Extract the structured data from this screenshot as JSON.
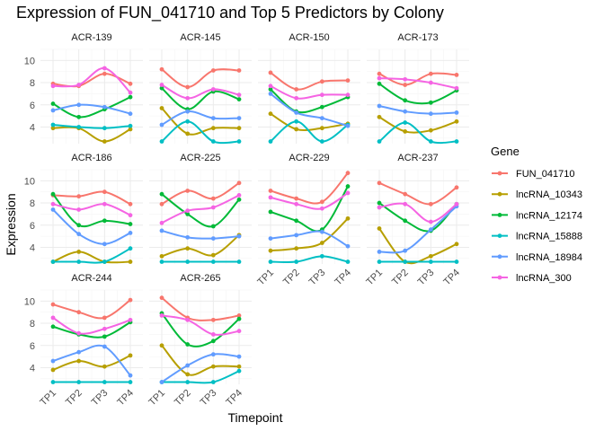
{
  "chart_data": {
    "type": "line",
    "title": "Expression of FUN_041710 and Top 5 Predictors by Colony",
    "xlabel": "Timepoint",
    "ylabel": "Expression",
    "x": [
      "TP1",
      "TP2",
      "TP3",
      "TP4"
    ],
    "ylim": [
      2.5,
      11
    ],
    "yticks": [
      4,
      6,
      8,
      10
    ],
    "grid": true,
    "facet_columns": 4,
    "legend": {
      "title": "Gene",
      "position": "right",
      "entries": [
        {
          "name": "FUN_041710",
          "color": "#F8766D"
        },
        {
          "name": "lncRNA_10343",
          "color": "#B79F00"
        },
        {
          "name": "lncRNA_12174",
          "color": "#00BA38"
        },
        {
          "name": "lncRNA_15888",
          "color": "#00BFC4"
        },
        {
          "name": "lncRNA_18984",
          "color": "#619CFF"
        },
        {
          "name": "lncRNA_300",
          "color": "#F564E3"
        }
      ]
    },
    "panels": [
      {
        "colony": "ACR-139",
        "series": [
          {
            "name": "FUN_041710",
            "values": [
              7.9,
              7.7,
              8.8,
              7.9
            ]
          },
          {
            "name": "lncRNA_10343",
            "values": [
              3.9,
              3.9,
              2.7,
              3.8
            ]
          },
          {
            "name": "lncRNA_12174",
            "values": [
              6.1,
              4.9,
              5.6,
              6.7
            ]
          },
          {
            "name": "lncRNA_15888",
            "values": [
              4.2,
              4.0,
              3.9,
              4.1
            ]
          },
          {
            "name": "lncRNA_18984",
            "values": [
              5.5,
              6.0,
              5.8,
              5.2
            ]
          },
          {
            "name": "lncRNA_300",
            "values": [
              7.7,
              7.8,
              9.3,
              7.1
            ]
          }
        ]
      },
      {
        "colony": "ACR-145",
        "series": [
          {
            "name": "FUN_041710",
            "values": [
              9.2,
              7.6,
              9.1,
              9.1
            ]
          },
          {
            "name": "lncRNA_10343",
            "values": [
              5.7,
              3.4,
              3.9,
              3.9
            ]
          },
          {
            "name": "lncRNA_12174",
            "values": [
              7.5,
              5.6,
              7.2,
              6.5
            ]
          },
          {
            "name": "lncRNA_15888",
            "values": [
              2.7,
              4.5,
              2.7,
              2.7
            ]
          },
          {
            "name": "lncRNA_18984",
            "values": [
              4.2,
              5.4,
              4.8,
              4.8
            ]
          },
          {
            "name": "lncRNA_300",
            "values": [
              7.8,
              6.6,
              7.4,
              6.9
            ]
          }
        ]
      },
      {
        "colony": "ACR-150",
        "series": [
          {
            "name": "FUN_041710",
            "values": [
              8.9,
              7.4,
              8.1,
              8.2
            ]
          },
          {
            "name": "lncRNA_10343",
            "values": [
              5.2,
              3.8,
              3.9,
              4.3
            ]
          },
          {
            "name": "lncRNA_12174",
            "values": [
              7.4,
              5.4,
              5.8,
              6.7
            ]
          },
          {
            "name": "lncRNA_15888",
            "values": [
              2.7,
              4.5,
              2.7,
              4.2
            ]
          },
          {
            "name": "lncRNA_18984",
            "values": [
              7.0,
              5.3,
              4.8,
              4.1
            ]
          },
          {
            "name": "lncRNA_300",
            "values": [
              7.7,
              6.6,
              6.9,
              6.9
            ]
          }
        ]
      },
      {
        "colony": "ACR-173",
        "series": [
          {
            "name": "FUN_041710",
            "values": [
              8.8,
              7.8,
              8.8,
              8.7
            ]
          },
          {
            "name": "lncRNA_10343",
            "values": [
              4.9,
              3.6,
              3.7,
              4.5
            ]
          },
          {
            "name": "lncRNA_12174",
            "values": [
              7.9,
              6.4,
              6.2,
              7.3
            ]
          },
          {
            "name": "lncRNA_15888",
            "values": [
              2.7,
              4.4,
              2.7,
              2.7
            ]
          },
          {
            "name": "lncRNA_18984",
            "values": [
              5.9,
              5.4,
              5.2,
              5.3
            ]
          },
          {
            "name": "lncRNA_300",
            "values": [
              8.4,
              8.3,
              8.0,
              7.5
            ]
          }
        ]
      },
      {
        "colony": "ACR-186",
        "series": [
          {
            "name": "FUN_041710",
            "values": [
              8.7,
              8.6,
              9.0,
              7.9
            ]
          },
          {
            "name": "lncRNA_10343",
            "values": [
              2.7,
              3.6,
              2.7,
              2.7
            ]
          },
          {
            "name": "lncRNA_12174",
            "values": [
              8.8,
              6.0,
              6.4,
              6.1
            ]
          },
          {
            "name": "lncRNA_15888",
            "values": [
              2.7,
              2.7,
              2.7,
              3.9
            ]
          },
          {
            "name": "lncRNA_18984",
            "values": [
              7.4,
              5.2,
              4.3,
              5.3
            ]
          },
          {
            "name": "lncRNA_300",
            "values": [
              7.9,
              7.4,
              7.9,
              6.9
            ]
          }
        ]
      },
      {
        "colony": "ACR-225",
        "series": [
          {
            "name": "FUN_041710",
            "values": [
              7.9,
              9.1,
              8.4,
              9.8
            ]
          },
          {
            "name": "lncRNA_10343",
            "values": [
              3.2,
              3.9,
              3.3,
              5.1
            ]
          },
          {
            "name": "lncRNA_12174",
            "values": [
              8.8,
              7.0,
              5.9,
              8.3
            ]
          },
          {
            "name": "lncRNA_15888",
            "values": [
              2.7,
              2.7,
              2.7,
              2.7
            ]
          },
          {
            "name": "lncRNA_18984",
            "values": [
              5.5,
              4.9,
              4.8,
              5.0
            ]
          },
          {
            "name": "lncRNA_300",
            "values": [
              6.2,
              7.3,
              7.6,
              8.7
            ]
          }
        ]
      },
      {
        "colony": "ACR-229",
        "series": [
          {
            "name": "FUN_041710",
            "values": [
              9.1,
              8.4,
              8.1,
              10.7
            ]
          },
          {
            "name": "lncRNA_10343",
            "values": [
              3.7,
              3.9,
              4.4,
              6.6
            ]
          },
          {
            "name": "lncRNA_12174",
            "values": [
              7.2,
              6.4,
              5.6,
              9.5
            ]
          },
          {
            "name": "lncRNA_15888",
            "values": [
              2.7,
              2.7,
              3.2,
              2.7
            ]
          },
          {
            "name": "lncRNA_18984",
            "values": [
              4.8,
              5.1,
              5.4,
              4.1
            ]
          },
          {
            "name": "lncRNA_300",
            "values": [
              8.5,
              7.9,
              7.5,
              8.9
            ]
          }
        ]
      },
      {
        "colony": "ACR-237",
        "series": [
          {
            "name": "FUN_041710",
            "values": [
              9.8,
              8.8,
              7.9,
              9.4
            ]
          },
          {
            "name": "lncRNA_10343",
            "values": [
              5.7,
              2.7,
              3.2,
              4.3
            ]
          },
          {
            "name": "lncRNA_12174",
            "values": [
              8.0,
              6.4,
              5.5,
              7.9
            ]
          },
          {
            "name": "lncRNA_15888",
            "values": [
              2.7,
              2.7,
              2.7,
              2.7
            ]
          },
          {
            "name": "lncRNA_18984",
            "values": [
              3.6,
              3.7,
              5.6,
              7.7
            ]
          },
          {
            "name": "lncRNA_300",
            "values": [
              7.6,
              7.9,
              6.3,
              7.9
            ]
          }
        ]
      },
      {
        "colony": "ACR-244",
        "series": [
          {
            "name": "FUN_041710",
            "values": [
              9.7,
              9.0,
              8.5,
              10.1
            ]
          },
          {
            "name": "lncRNA_10343",
            "values": [
              3.8,
              4.6,
              4.1,
              5.1
            ]
          },
          {
            "name": "lncRNA_12174",
            "values": [
              7.7,
              7.0,
              6.8,
              8.1
            ]
          },
          {
            "name": "lncRNA_15888",
            "values": [
              2.7,
              2.7,
              2.7,
              2.7
            ]
          },
          {
            "name": "lncRNA_18984",
            "values": [
              4.6,
              5.4,
              5.9,
              3.3
            ]
          },
          {
            "name": "lncRNA_300",
            "values": [
              8.5,
              7.1,
              7.5,
              8.3
            ]
          }
        ]
      },
      {
        "colony": "ACR-265",
        "series": [
          {
            "name": "FUN_041710",
            "values": [
              10.3,
              8.5,
              8.3,
              8.7
            ]
          },
          {
            "name": "lncRNA_10343",
            "values": [
              6.0,
              3.4,
              4.1,
              4.1
            ]
          },
          {
            "name": "lncRNA_12174",
            "values": [
              8.9,
              6.1,
              6.4,
              8.4
            ]
          },
          {
            "name": "lncRNA_15888",
            "values": [
              2.7,
              2.7,
              2.7,
              3.7
            ]
          },
          {
            "name": "lncRNA_18984",
            "values": [
              2.7,
              4.2,
              5.2,
              5.0
            ]
          },
          {
            "name": "lncRNA_300",
            "values": [
              8.7,
              8.3,
              7.0,
              7.3
            ]
          }
        ]
      }
    ]
  }
}
